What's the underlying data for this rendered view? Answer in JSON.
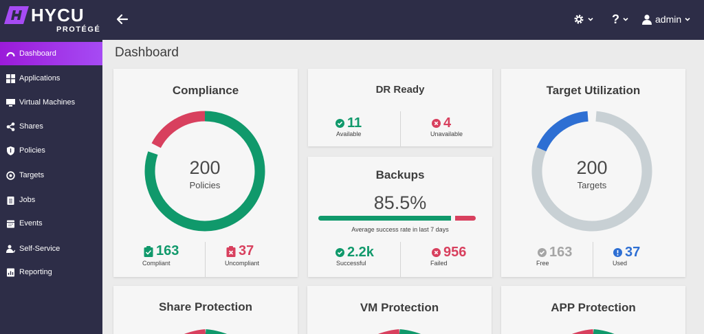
{
  "brand": {
    "name": "HYCU",
    "sub": "PROTÉGÉ"
  },
  "header": {
    "user": "admin"
  },
  "sidebar": {
    "items": [
      {
        "label": "Dashboard",
        "icon": "dashboard-icon"
      },
      {
        "label": "Applications",
        "icon": "applications-icon"
      },
      {
        "label": "Virtual Machines",
        "icon": "monitor-icon"
      },
      {
        "label": "Shares",
        "icon": "share-icon"
      },
      {
        "label": "Policies",
        "icon": "shield-icon"
      },
      {
        "label": "Targets",
        "icon": "target-icon"
      },
      {
        "label": "Jobs",
        "icon": "clipboard-icon"
      },
      {
        "label": "Events",
        "icon": "calendar-icon"
      },
      {
        "label": "Self-Service",
        "icon": "self-service-icon"
      },
      {
        "label": "Reporting",
        "icon": "report-icon"
      }
    ]
  },
  "page": {
    "title": "Dashboard"
  },
  "compliance": {
    "title": "Compliance",
    "total": "200",
    "total_label": "Policies",
    "compliant": "163",
    "compliant_label": "Compliant",
    "uncompliant": "37",
    "uncompliant_label": "Uncompliant",
    "compliant_fraction": 0.815
  },
  "dr": {
    "title": "DR Ready",
    "available": "11",
    "available_label": "Available",
    "unavailable": "4",
    "unavailable_label": "Unavailable"
  },
  "backups": {
    "title": "Backups",
    "rate": "85.5%",
    "rate_fraction": 0.855,
    "caption": "Average success rate in last 7 days",
    "successful": "2.2k",
    "successful_label": "Successful",
    "failed": "956",
    "failed_label": "Failed"
  },
  "target": {
    "title": "Target Utilization",
    "total": "200",
    "total_label": "Targets",
    "free": "163",
    "free_label": "Free",
    "used": "37",
    "used_label": "Used",
    "used_fraction": 0.185
  },
  "bottom": {
    "share_title": "Share Protection",
    "vm_title": "VM Protection",
    "app_title": "APP Protection"
  },
  "colors": {
    "green": "#10996b",
    "red": "#d8405e",
    "blue": "#2e6fd3",
    "grey": "#c8d0d4",
    "accent": "#a64bf4"
  }
}
